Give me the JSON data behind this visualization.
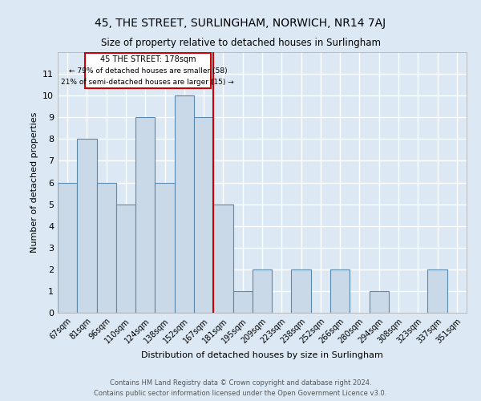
{
  "title": "45, THE STREET, SURLINGHAM, NORWICH, NR14 7AJ",
  "subtitle": "Size of property relative to detached houses in Surlingham",
  "xlabel": "Distribution of detached houses by size in Surlingham",
  "ylabel": "Number of detached properties",
  "categories": [
    "67sqm",
    "81sqm",
    "96sqm",
    "110sqm",
    "124sqm",
    "138sqm",
    "152sqm",
    "167sqm",
    "181sqm",
    "195sqm",
    "209sqm",
    "223sqm",
    "238sqm",
    "252sqm",
    "266sqm",
    "280sqm",
    "294sqm",
    "308sqm",
    "323sqm",
    "337sqm",
    "351sqm"
  ],
  "values": [
    6,
    8,
    6,
    5,
    9,
    6,
    10,
    9,
    5,
    1,
    2,
    0,
    2,
    0,
    2,
    0,
    1,
    0,
    0,
    2,
    0
  ],
  "bar_color": "#c9d9e8",
  "bar_edgecolor": "#5a8ab0",
  "annotation_title": "45 THE STREET: 178sqm",
  "annotation_line1": "← 79% of detached houses are smaller (58)",
  "annotation_line2": "21% of semi-detached houses are larger (15) →",
  "vline_color": "#cc0000",
  "vline_x_index": 7.5,
  "ylim": [
    0,
    12
  ],
  "yticks": [
    0,
    1,
    2,
    3,
    4,
    5,
    6,
    7,
    8,
    9,
    10,
    11,
    12
  ],
  "background_color": "#dce9f5",
  "grid_color": "#ffffff",
  "footer_line1": "Contains HM Land Registry data © Crown copyright and database right 2024.",
  "footer_line2": "Contains public sector information licensed under the Open Government Licence v3.0."
}
